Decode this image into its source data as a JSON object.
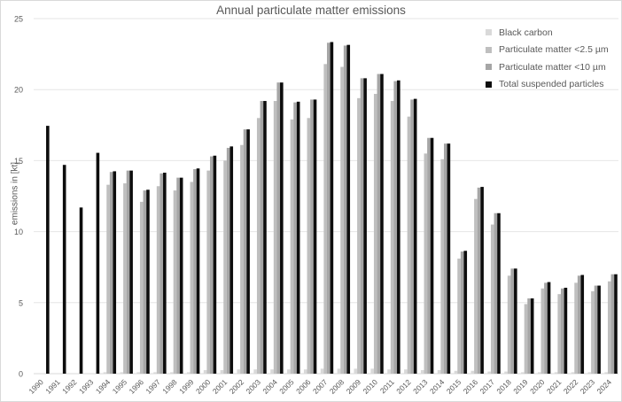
{
  "chart_data": {
    "type": "bar",
    "title": "Annual particulate matter emissions",
    "xlabel": "",
    "ylabel": "emissions in [kt]",
    "ylim": [
      0,
      25
    ],
    "yticks": [
      0,
      5,
      10,
      15,
      20,
      25
    ],
    "grid": true,
    "legend_position": "top-right",
    "categories": [
      "1990",
      "1991",
      "1992",
      "1993",
      "1994",
      "1995",
      "1996",
      "1997",
      "1998",
      "1999",
      "2000",
      "2001",
      "2002",
      "2003",
      "2004",
      "2005",
      "2006",
      "2007",
      "2008",
      "2009",
      "2010",
      "2011",
      "2012",
      "2013",
      "2014",
      "2015",
      "2016",
      "2017",
      "2018",
      "2019",
      "2020",
      "2021",
      "2022",
      "2023",
      "2024"
    ],
    "series": [
      {
        "name": "Black carbon",
        "color": "#d9d9d9",
        "values": [
          null,
          null,
          null,
          null,
          0.1,
          0.1,
          0.1,
          0.1,
          0.1,
          0.1,
          0.25,
          0.25,
          0.3,
          0.3,
          0.3,
          0.3,
          0.3,
          0.35,
          0.35,
          0.35,
          0.35,
          0.3,
          0.3,
          0.25,
          0.25,
          0.2,
          0.2,
          0.15,
          0.15,
          0.1,
          0.1,
          0.1,
          0.1,
          0.1,
          0.1
        ]
      },
      {
        "name": "Particulate matter <2.5 µm",
        "color": "#bfbfbf",
        "values": [
          null,
          null,
          null,
          null,
          13.3,
          13.4,
          12.1,
          13.2,
          12.9,
          13.5,
          14.3,
          15.0,
          16.1,
          18.0,
          19.2,
          17.9,
          18.0,
          21.8,
          21.6,
          19.4,
          19.7,
          19.2,
          18.1,
          15.5,
          15.1,
          8.1,
          12.3,
          10.5,
          6.9,
          4.9,
          6.0,
          5.6,
          6.4,
          5.8,
          6.5
        ]
      },
      {
        "name": "Particulate matter <10 µm",
        "color": "#a6a6a6",
        "values": [
          null,
          null,
          null,
          null,
          14.2,
          14.3,
          12.9,
          14.1,
          13.8,
          14.4,
          15.3,
          15.9,
          17.2,
          19.2,
          20.5,
          19.1,
          19.3,
          23.3,
          23.1,
          20.8,
          21.1,
          20.6,
          19.3,
          16.6,
          16.2,
          8.6,
          13.1,
          11.3,
          7.4,
          5.3,
          6.4,
          6.0,
          6.9,
          6.2,
          7.0
        ]
      },
      {
        "name": "Total suspended particles",
        "color": "#0d0d0d",
        "values": [
          17.45,
          14.7,
          11.7,
          15.55,
          14.25,
          14.3,
          12.95,
          14.15,
          13.8,
          14.45,
          15.35,
          16.0,
          17.2,
          19.2,
          20.5,
          19.15,
          19.3,
          23.35,
          23.15,
          20.8,
          21.1,
          20.65,
          19.35,
          16.6,
          16.2,
          8.65,
          13.15,
          11.3,
          7.4,
          5.3,
          6.45,
          6.05,
          6.95,
          6.2,
          7.0
        ]
      }
    ]
  },
  "legend": {
    "items": [
      {
        "label": "Black carbon",
        "color": "#d9d9d9"
      },
      {
        "label": "Particulate matter <2.5 µm",
        "color": "#bfbfbf"
      },
      {
        "label": "Particulate matter <10 µm",
        "color": "#a6a6a6"
      },
      {
        "label": "Total suspended particles",
        "color": "#0d0d0d"
      }
    ]
  }
}
